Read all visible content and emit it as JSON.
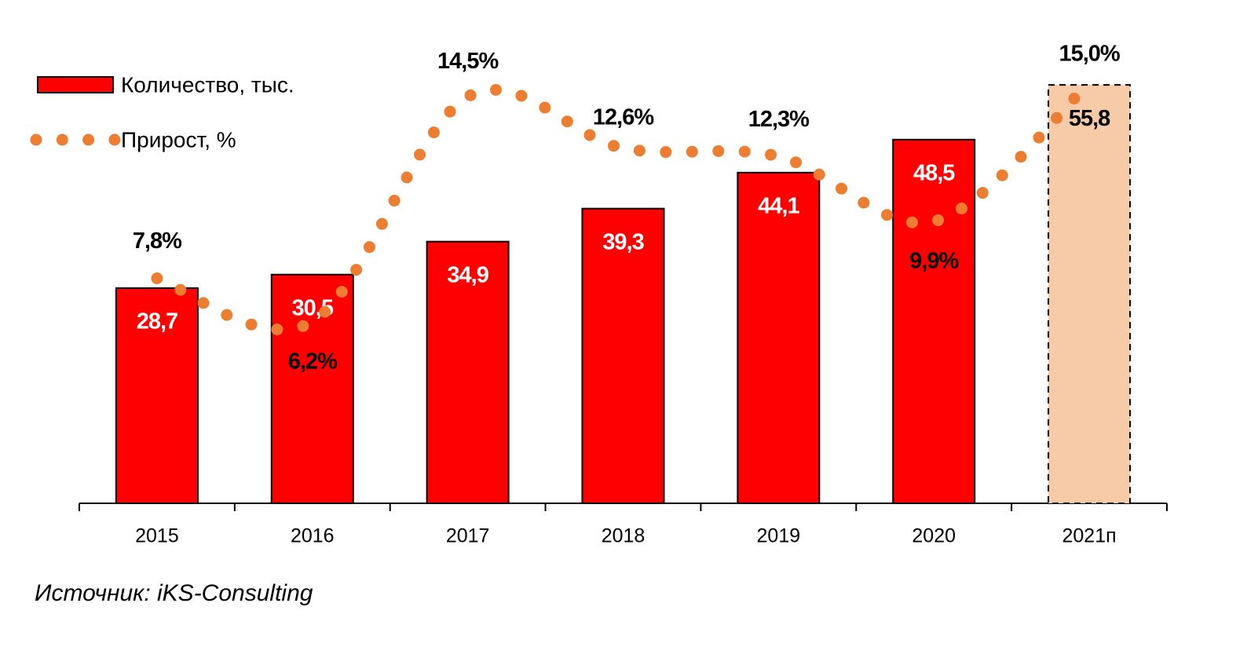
{
  "chart_data": {
    "type": "bar-line",
    "categories": [
      "2015",
      "2016",
      "2017",
      "2018",
      "2019",
      "2020",
      "2021п"
    ],
    "series": [
      {
        "name": "Количество, тыс.",
        "type": "bar",
        "color": "#ff0000",
        "colors": [
          "#ff0000",
          "#ff0000",
          "#ff0000",
          "#ff0000",
          "#ff0000",
          "#ff0000",
          "#f8cba8"
        ],
        "values": [
          28.7,
          30.5,
          34.9,
          39.3,
          44.1,
          48.5,
          55.8
        ],
        "value_labels": [
          "28,7",
          "30,5",
          "34,9",
          "39,3",
          "44,1",
          "48,5",
          "55,8"
        ]
      },
      {
        "name": "Прирост, %",
        "type": "line",
        "axis": "y2",
        "color": "#ed7d31",
        "values": [
          7.8,
          6.2,
          14.5,
          12.6,
          12.3,
          9.9,
          15.0
        ],
        "value_labels": [
          "7,8%",
          "6,2%",
          "14,5%",
          "12,6%",
          "12,3%",
          "9,9%",
          "15,0%"
        ]
      }
    ],
    "ylim": [
      0,
      60
    ],
    "y2lim": [
      -0.5,
      16.1
    ],
    "source": "Источник: iKS-Consulting"
  }
}
